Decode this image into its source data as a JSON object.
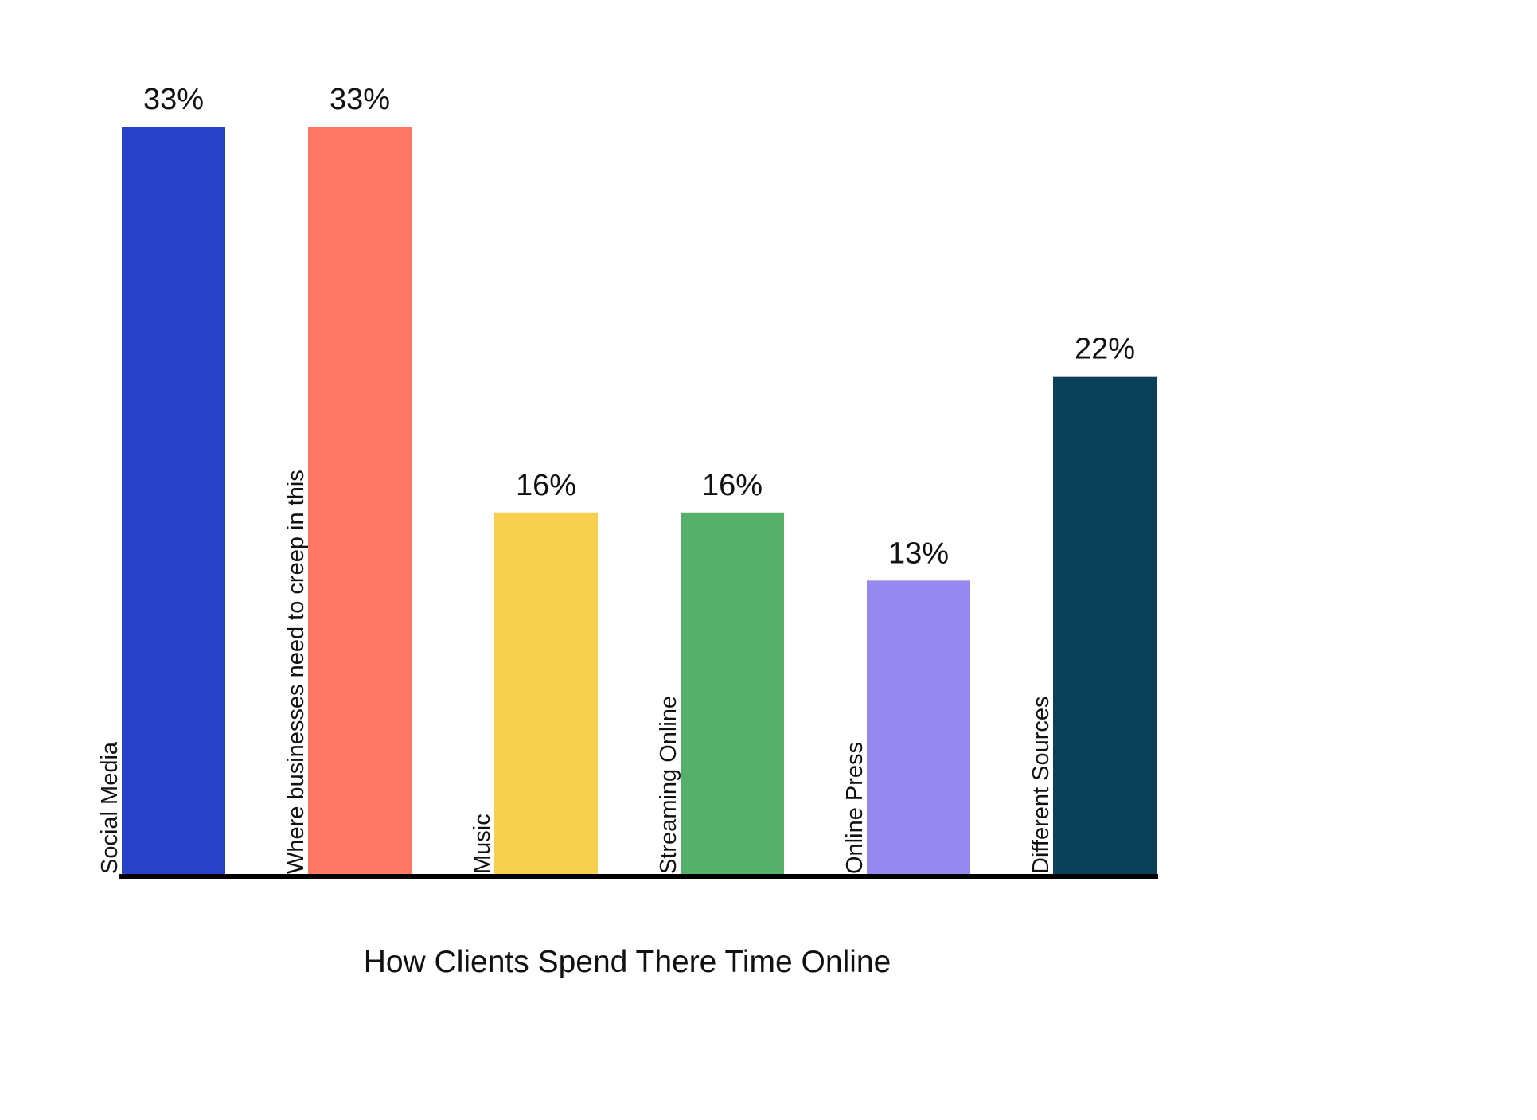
{
  "chart_data": {
    "type": "bar",
    "title": "",
    "xlabel": "How Clients Spend There Time Online",
    "ylabel": "",
    "ylim": [
      0,
      33
    ],
    "grid": false,
    "legend": "none",
    "categories": [
      "Social Media",
      "Where businesses need to creep in this",
      "Music",
      "Streaming Online",
      "Online Press",
      "Different Sources"
    ],
    "values": [
      33,
      33,
      16,
      16,
      13,
      22
    ],
    "data_labels": [
      "33%",
      "33%",
      "16%",
      "16%",
      "13%",
      "22%"
    ],
    "colors": [
      "#2742C8",
      "#FF7866",
      "#F6D04E",
      "#56B06A",
      "#968AF0",
      "#0B405B"
    ],
    "axis_color": "#000000"
  }
}
